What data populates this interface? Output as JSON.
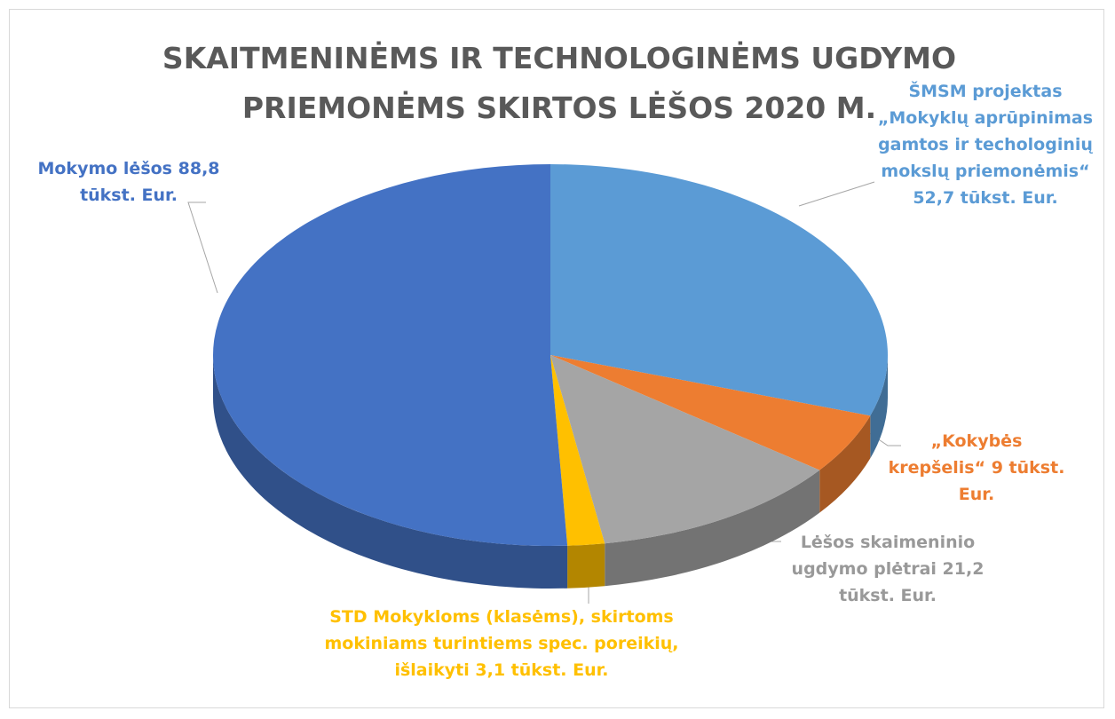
{
  "chart_data": {
    "type": "pie3d",
    "title": "SKAITMENINĖMS IR TECHNOLOGINĖMS UGDYMO PRIEMONĖMS SKIRTOS LĖŠOS 2020 M.",
    "categories": [
      "ŠMSM projektas „Mokyklų aprūpinimas gamtos ir techologinių mokslų priemonėmis“",
      "„Kokybės krepšelis“",
      "Lėšos skaimeninio ugdymo plėtrai",
      "STD Mokykloms (klasėms), skirtoms mokiniams turintiems spec. poreikių, išlaikyti",
      "Mokymo lėšos"
    ],
    "values": [
      52.7,
      9,
      21.2,
      3.1,
      88.8
    ],
    "value_labels": [
      "52,7 tūkst. Eur.",
      "9 tūkst. Eur.",
      "21,2 tūkst. Eur.",
      "3,1 tūkst. Eur.",
      "88,8 tūkst. Eur."
    ],
    "colors": [
      "#5b9bd5",
      "#ed7d31",
      "#a5a5a5",
      "#ffc000",
      "#4472c4"
    ]
  }
}
